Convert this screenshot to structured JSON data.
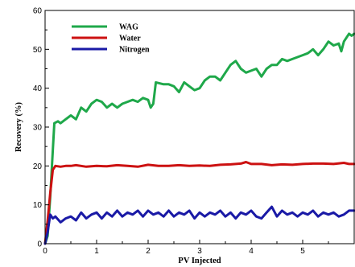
{
  "chart_data": {
    "type": "line",
    "xlabel": "PV Injected",
    "ylabel": "Recovery (%)",
    "xlim": [
      0,
      6
    ],
    "ylim": [
      0,
      60
    ],
    "xticks": [
      0,
      1,
      2,
      3,
      4,
      5
    ],
    "xtick_labels": [
      "0",
      "1",
      "2",
      "3",
      "4",
      "5"
    ],
    "yticks": [
      0,
      10,
      20,
      30,
      40,
      50,
      60
    ],
    "ytick_labels": [
      "0",
      "10",
      "20",
      "30",
      "40",
      "50",
      "60"
    ],
    "grid": false,
    "legend": "top-left",
    "series": [
      {
        "name": "WAG",
        "color": "#1fa84a",
        "points": [
          [
            0,
            0
          ],
          [
            0.05,
            2
          ],
          [
            0.1,
            12
          ],
          [
            0.15,
            24
          ],
          [
            0.18,
            31
          ],
          [
            0.25,
            31.5
          ],
          [
            0.3,
            31
          ],
          [
            0.4,
            32
          ],
          [
            0.5,
            33
          ],
          [
            0.6,
            32
          ],
          [
            0.7,
            35
          ],
          [
            0.8,
            34
          ],
          [
            0.9,
            36
          ],
          [
            1.0,
            37
          ],
          [
            1.1,
            36.5
          ],
          [
            1.2,
            35
          ],
          [
            1.3,
            36
          ],
          [
            1.4,
            35
          ],
          [
            1.5,
            36
          ],
          [
            1.6,
            36.5
          ],
          [
            1.7,
            37
          ],
          [
            1.8,
            36.5
          ],
          [
            1.9,
            37.5
          ],
          [
            2.0,
            37
          ],
          [
            2.05,
            35
          ],
          [
            2.1,
            36
          ],
          [
            2.15,
            41.5
          ],
          [
            2.3,
            41
          ],
          [
            2.4,
            41
          ],
          [
            2.5,
            40.5
          ],
          [
            2.6,
            39
          ],
          [
            2.7,
            41.5
          ],
          [
            2.8,
            40.5
          ],
          [
            2.9,
            39.5
          ],
          [
            3.0,
            40
          ],
          [
            3.1,
            42
          ],
          [
            3.2,
            43
          ],
          [
            3.3,
            43
          ],
          [
            3.4,
            42
          ],
          [
            3.5,
            44
          ],
          [
            3.6,
            46
          ],
          [
            3.7,
            47
          ],
          [
            3.8,
            45
          ],
          [
            3.9,
            44
          ],
          [
            4.0,
            44.5
          ],
          [
            4.1,
            45
          ],
          [
            4.2,
            43
          ],
          [
            4.3,
            45
          ],
          [
            4.4,
            46
          ],
          [
            4.5,
            46
          ],
          [
            4.6,
            47.5
          ],
          [
            4.7,
            47
          ],
          [
            4.8,
            47.5
          ],
          [
            4.9,
            48
          ],
          [
            5.0,
            48.5
          ],
          [
            5.1,
            49
          ],
          [
            5.2,
            50
          ],
          [
            5.3,
            48.5
          ],
          [
            5.4,
            50
          ],
          [
            5.5,
            52
          ],
          [
            5.6,
            51
          ],
          [
            5.7,
            51.5
          ],
          [
            5.75,
            49.5
          ],
          [
            5.8,
            52
          ],
          [
            5.85,
            53
          ],
          [
            5.9,
            54
          ],
          [
            5.95,
            53.5
          ],
          [
            6.0,
            54
          ]
        ]
      },
      {
        "name": "Water",
        "color": "#cc1111",
        "points": [
          [
            0,
            0
          ],
          [
            0.05,
            6
          ],
          [
            0.1,
            13
          ],
          [
            0.15,
            19
          ],
          [
            0.2,
            20
          ],
          [
            0.3,
            19.8
          ],
          [
            0.4,
            20
          ],
          [
            0.5,
            20
          ],
          [
            0.6,
            20.2
          ],
          [
            0.8,
            19.8
          ],
          [
            1.0,
            20
          ],
          [
            1.2,
            19.9
          ],
          [
            1.4,
            20.2
          ],
          [
            1.6,
            20
          ],
          [
            1.8,
            19.8
          ],
          [
            2.0,
            20.3
          ],
          [
            2.2,
            20
          ],
          [
            2.4,
            20
          ],
          [
            2.6,
            20.2
          ],
          [
            2.8,
            20
          ],
          [
            3.0,
            20.1
          ],
          [
            3.2,
            20
          ],
          [
            3.4,
            20.3
          ],
          [
            3.6,
            20.4
          ],
          [
            3.8,
            20.6
          ],
          [
            3.9,
            21
          ],
          [
            4.0,
            20.5
          ],
          [
            4.2,
            20.5
          ],
          [
            4.4,
            20.2
          ],
          [
            4.6,
            20.4
          ],
          [
            4.8,
            20.3
          ],
          [
            5.0,
            20.5
          ],
          [
            5.2,
            20.6
          ],
          [
            5.4,
            20.6
          ],
          [
            5.6,
            20.5
          ],
          [
            5.8,
            20.8
          ],
          [
            5.9,
            20.5
          ],
          [
            6.0,
            20.5
          ]
        ]
      },
      {
        "name": "Nitrogen",
        "color": "#1a1aa6",
        "points": [
          [
            0,
            0
          ],
          [
            0.05,
            3
          ],
          [
            0.1,
            7.5
          ],
          [
            0.15,
            6.5
          ],
          [
            0.2,
            7
          ],
          [
            0.3,
            5.5
          ],
          [
            0.4,
            6.5
          ],
          [
            0.5,
            7
          ],
          [
            0.6,
            6
          ],
          [
            0.7,
            8
          ],
          [
            0.8,
            6.5
          ],
          [
            0.9,
            7.5
          ],
          [
            1.0,
            8
          ],
          [
            1.1,
            6.5
          ],
          [
            1.2,
            8
          ],
          [
            1.3,
            7
          ],
          [
            1.4,
            8.5
          ],
          [
            1.5,
            7
          ],
          [
            1.6,
            8
          ],
          [
            1.7,
            7.5
          ],
          [
            1.8,
            8.5
          ],
          [
            1.9,
            7
          ],
          [
            2.0,
            8.5
          ],
          [
            2.1,
            7.5
          ],
          [
            2.2,
            8
          ],
          [
            2.3,
            7
          ],
          [
            2.4,
            8.5
          ],
          [
            2.5,
            7
          ],
          [
            2.6,
            8
          ],
          [
            2.7,
            7.5
          ],
          [
            2.8,
            8.5
          ],
          [
            2.9,
            6.5
          ],
          [
            3.0,
            8
          ],
          [
            3.1,
            7
          ],
          [
            3.2,
            8
          ],
          [
            3.3,
            7.5
          ],
          [
            3.4,
            8.5
          ],
          [
            3.5,
            7
          ],
          [
            3.6,
            8
          ],
          [
            3.7,
            6.5
          ],
          [
            3.8,
            8
          ],
          [
            3.9,
            7.5
          ],
          [
            4.0,
            8.5
          ],
          [
            4.1,
            7
          ],
          [
            4.2,
            6.5
          ],
          [
            4.3,
            8
          ],
          [
            4.4,
            9.5
          ],
          [
            4.5,
            7
          ],
          [
            4.6,
            8.5
          ],
          [
            4.7,
            7.5
          ],
          [
            4.8,
            8
          ],
          [
            4.9,
            7
          ],
          [
            5.0,
            8
          ],
          [
            5.1,
            7.5
          ],
          [
            5.2,
            8.5
          ],
          [
            5.3,
            7
          ],
          [
            5.4,
            8
          ],
          [
            5.5,
            7.5
          ],
          [
            5.6,
            8
          ],
          [
            5.7,
            7
          ],
          [
            5.8,
            7.5
          ],
          [
            5.9,
            8.5
          ],
          [
            6.0,
            8.5
          ]
        ]
      }
    ]
  }
}
